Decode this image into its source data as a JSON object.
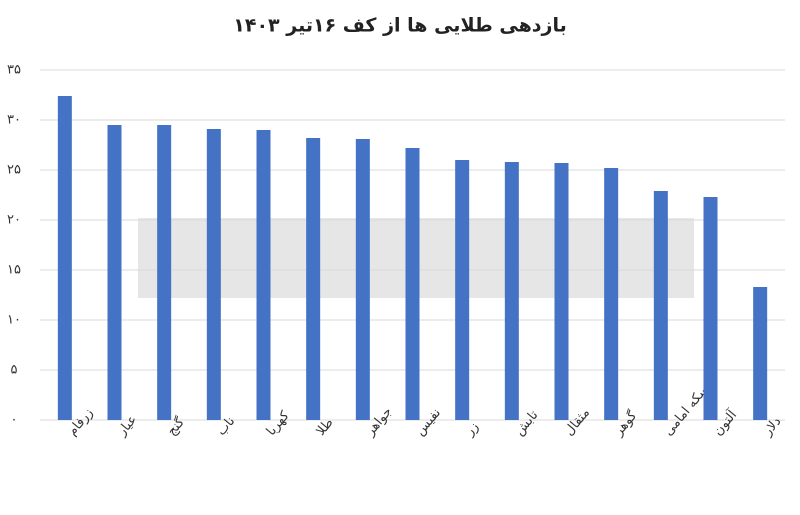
{
  "chart_data": {
    "type": "bar",
    "title": "بازدهی طلایی ها از کف ۱۶تیر ۱۴۰۳",
    "categories": [
      "زرفام",
      "عیار",
      "گنج",
      "ناب",
      "کهربا",
      "طلا",
      "جواهر",
      "نفیس",
      "زر",
      "تابش",
      "مثقال",
      "گوهر",
      "سکه امامی",
      "آلتون",
      "دلار"
    ],
    "values": [
      32.4,
      29.5,
      29.5,
      29.1,
      29.0,
      28.2,
      28.1,
      27.2,
      26.0,
      25.8,
      25.7,
      25.2,
      22.9,
      22.3,
      13.3
    ],
    "color": "#4472c4",
    "ylim": [
      0,
      35
    ],
    "yticks": [
      {
        "value": 0,
        "label": "۰"
      },
      {
        "value": 5,
        "label": "۵"
      },
      {
        "value": 10,
        "label": "۱۰"
      },
      {
        "value": 15,
        "label": "۱۵"
      },
      {
        "value": 20,
        "label": "۲۰"
      },
      {
        "value": 25,
        "label": "۲۵"
      },
      {
        "value": 30,
        "label": "۳۰"
      },
      {
        "value": 35,
        "label": "۳۵"
      }
    ],
    "grid": true
  }
}
